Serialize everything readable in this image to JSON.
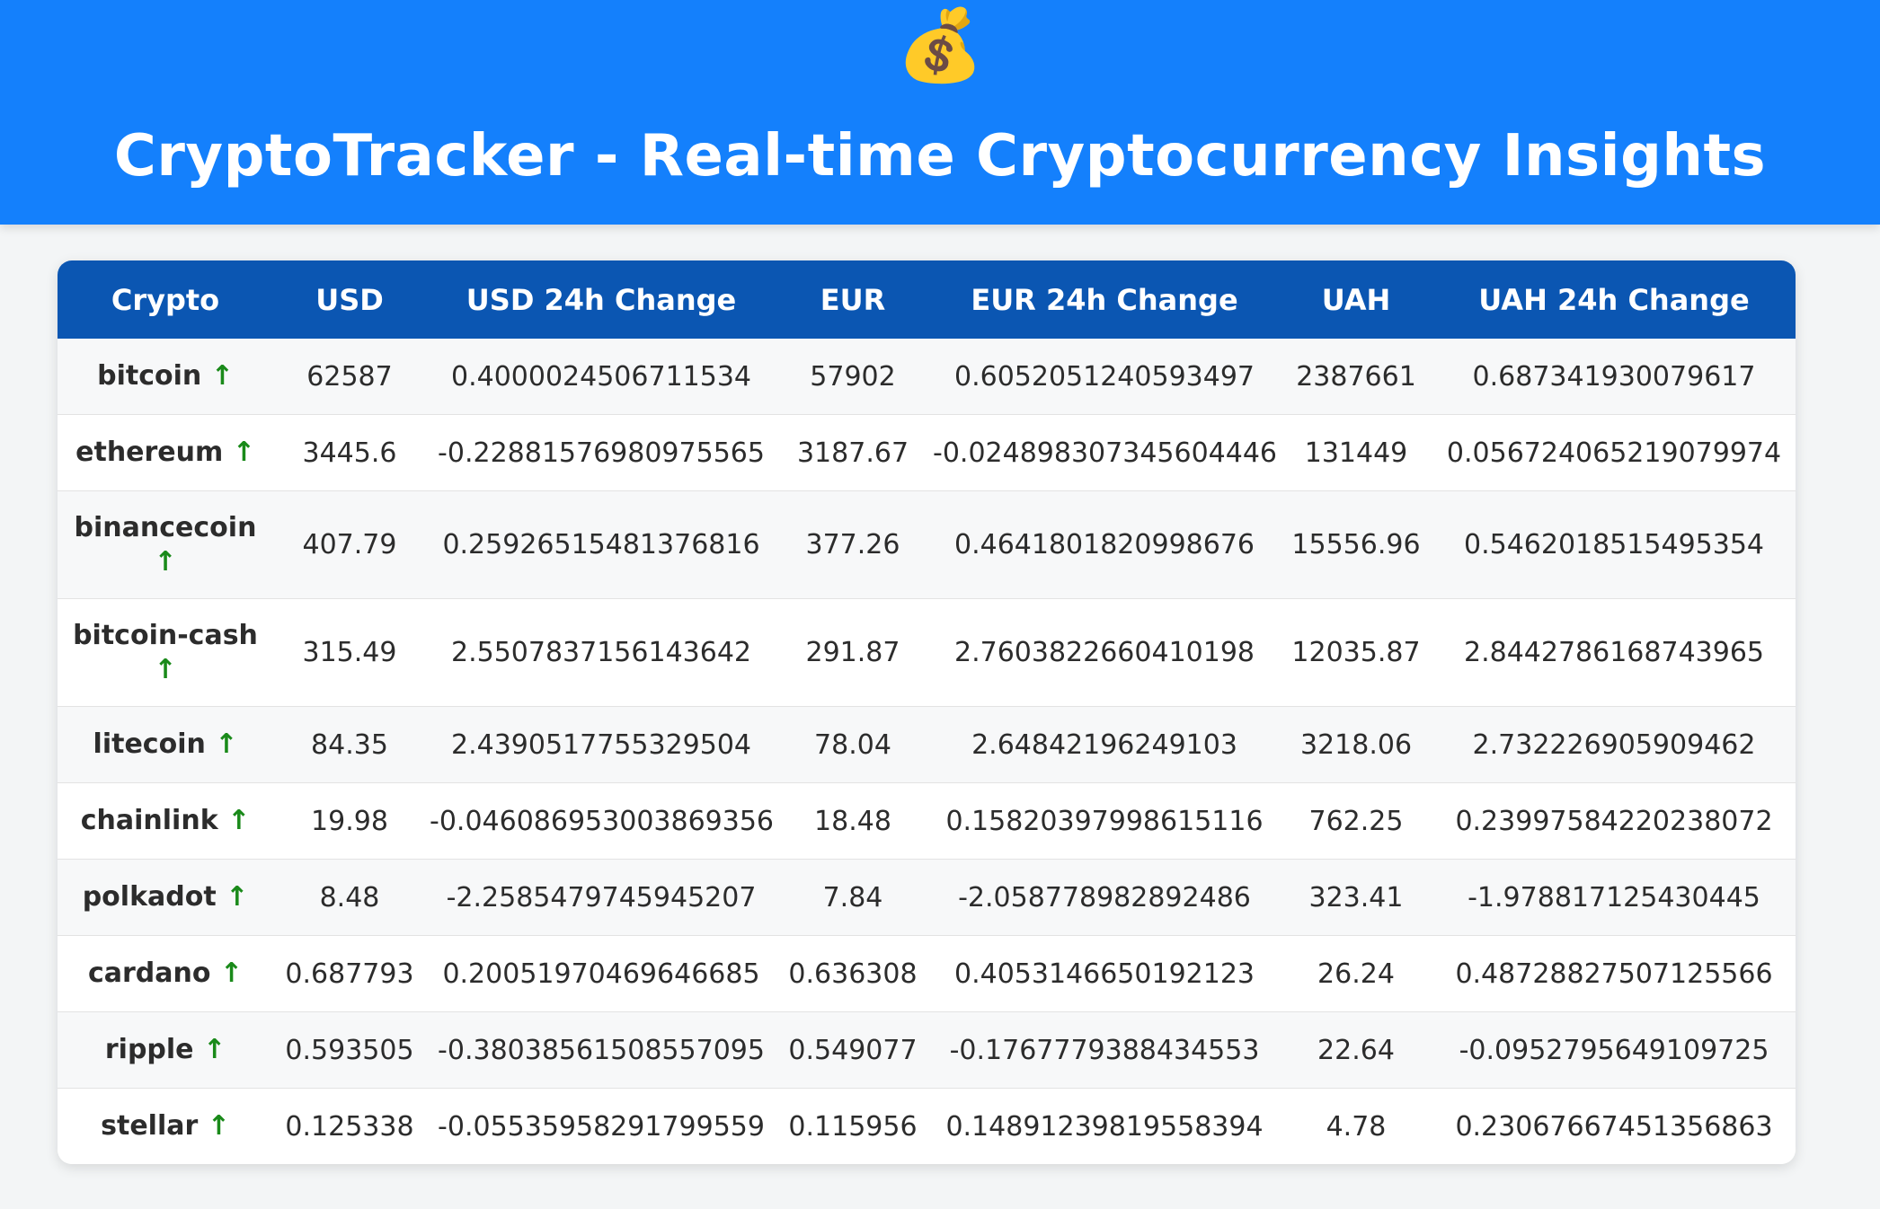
{
  "header": {
    "logo_emoji": "💰",
    "title": "CryptoTracker - Real-time Cryptocurrency Insights"
  },
  "table": {
    "columns": [
      "Crypto",
      "USD",
      "USD 24h Change",
      "EUR",
      "EUR 24h Change",
      "UAH",
      "UAH 24h Change"
    ],
    "rows": [
      {
        "name": "bitcoin",
        "trend": "↑",
        "usd": "62587",
        "usd_change": "0.4000024506711534",
        "eur": "57902",
        "eur_change": "0.6052051240593497",
        "uah": "2387661",
        "uah_change": "0.687341930079617"
      },
      {
        "name": "ethereum",
        "trend": "↑",
        "usd": "3445.6",
        "usd_change": "-0.22881576980975565",
        "eur": "3187.67",
        "eur_change": "-0.024898307345604446",
        "uah": "131449",
        "uah_change": "0.056724065219079974"
      },
      {
        "name": "binancecoin",
        "trend": "↑",
        "usd": "407.79",
        "usd_change": "0.25926515481376816",
        "eur": "377.26",
        "eur_change": "0.4641801820998676",
        "uah": "15556.96",
        "uah_change": "0.5462018515495354"
      },
      {
        "name": "bitcoin-cash",
        "trend": "↑",
        "usd": "315.49",
        "usd_change": "2.5507837156143642",
        "eur": "291.87",
        "eur_change": "2.7603822660410198",
        "uah": "12035.87",
        "uah_change": "2.8442786168743965"
      },
      {
        "name": "litecoin",
        "trend": "↑",
        "usd": "84.35",
        "usd_change": "2.4390517755329504",
        "eur": "78.04",
        "eur_change": "2.64842196249103",
        "uah": "3218.06",
        "uah_change": "2.732226905909462"
      },
      {
        "name": "chainlink",
        "trend": "↑",
        "usd": "19.98",
        "usd_change": "-0.046086953003869356",
        "eur": "18.48",
        "eur_change": "0.15820397998615116",
        "uah": "762.25",
        "uah_change": "0.23997584220238072"
      },
      {
        "name": "polkadot",
        "trend": "↑",
        "usd": "8.48",
        "usd_change": "-2.2585479745945207",
        "eur": "7.84",
        "eur_change": "-2.058778982892486",
        "uah": "323.41",
        "uah_change": "-1.978817125430445"
      },
      {
        "name": "cardano",
        "trend": "↑",
        "usd": "0.687793",
        "usd_change": "0.20051970469646685",
        "eur": "0.636308",
        "eur_change": "0.4053146650192123",
        "uah": "26.24",
        "uah_change": "0.48728827507125566"
      },
      {
        "name": "ripple",
        "trend": "↑",
        "usd": "0.593505",
        "usd_change": "-0.38038561508557095",
        "eur": "0.549077",
        "eur_change": "-0.1767779388434553",
        "uah": "22.64",
        "uah_change": "-0.0952795649109725"
      },
      {
        "name": "stellar",
        "trend": "↑",
        "usd": "0.125338",
        "usd_change": "-0.05535958291799559",
        "eur": "0.115956",
        "eur_change": "0.14891239819558394",
        "uah": "4.78",
        "uah_change": "0.23067667451356863"
      }
    ]
  },
  "colors": {
    "header_bg": "#1480fc",
    "table_header_bg": "#0b56b2",
    "trend_up": "#1a8a1a",
    "page_bg": "#f3f5f6"
  }
}
